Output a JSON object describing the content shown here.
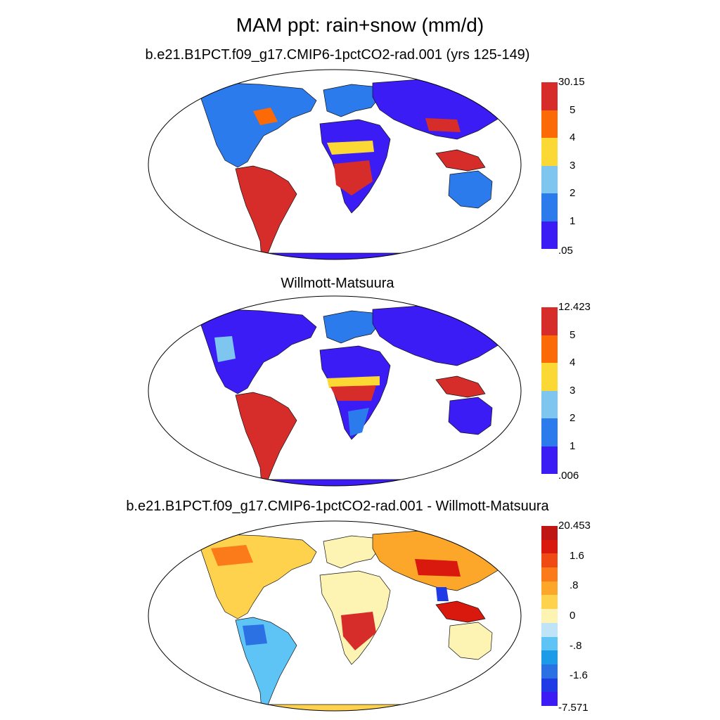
{
  "title": "MAM ppt: rain+snow (mm/d)",
  "panels": [
    {
      "title": "b.e21.B1PCT.f09_g17.CMIP6-1pctCO2-rad.001 (yrs 125-149)",
      "colorbar": {
        "colors": [
          "#3b1cf5",
          "#2b7bed",
          "#7ec6ef",
          "#fcd835",
          "#fc6a08",
          "#d62d2b"
        ],
        "labels": [
          "30.15",
          "5",
          "4",
          "3",
          "2",
          "1",
          ".05"
        ]
      }
    },
    {
      "title": "Willmott-Matsuura",
      "colorbar": {
        "colors": [
          "#3b1cf5",
          "#2b7bed",
          "#7ec6ef",
          "#fcd835",
          "#fc6a08",
          "#d62d2b"
        ],
        "labels": [
          "12.423",
          "5",
          "4",
          "3",
          "2",
          "1",
          ".006"
        ]
      }
    },
    {
      "title": "b.e21.B1PCT.f09_g17.CMIP6-1pctCO2-rad.001 - Willmott-Matsuura",
      "colorbar": {
        "colors": [
          "#3b1cf5",
          "#1e3be5",
          "#2c71e3",
          "#1b9be8",
          "#5ec3f5",
          "#bfe3f7",
          "#fdf3b3",
          "#fed24d",
          "#fca72a",
          "#fb7a19",
          "#f04a14",
          "#d9190e",
          "#c01515"
        ],
        "labels": [
          "20.453",
          "1.6",
          ".8",
          "0",
          "-.8",
          "-1.6",
          "-7.571"
        ]
      }
    }
  ]
}
